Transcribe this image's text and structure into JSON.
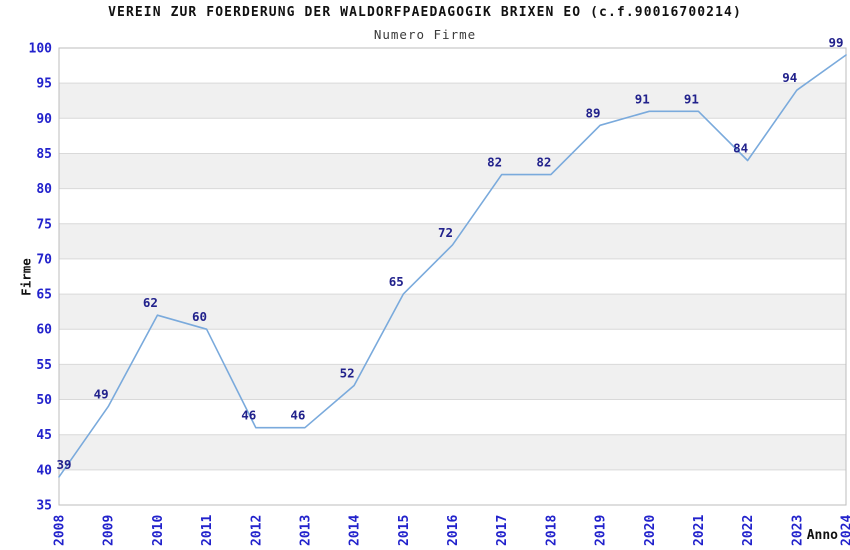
{
  "chart_data": {
    "type": "line",
    "title": "VEREIN ZUR FOERDERUNG DER WALDORFPAEDAGOGIK BRIXEN EO (c.f.90016700214)",
    "subtitle": "Numero Firme",
    "xlabel": "Anno",
    "ylabel": "Firme",
    "categories": [
      "2008",
      "2009",
      "2010",
      "2011",
      "2012",
      "2013",
      "2014",
      "2015",
      "2016",
      "2017",
      "2018",
      "2019",
      "2020",
      "2021",
      "2022",
      "2023",
      "2024"
    ],
    "series": [
      {
        "name": "Numero Firme",
        "values": [
          39,
          49,
          62,
          60,
          46,
          46,
          52,
          65,
          72,
          82,
          82,
          89,
          91,
          91,
          84,
          94,
          99
        ]
      }
    ],
    "ylim": [
      35,
      100
    ],
    "ytick_step": 5,
    "yticks": [
      35,
      40,
      45,
      50,
      55,
      60,
      65,
      70,
      75,
      80,
      85,
      90,
      95,
      100
    ],
    "grid": "horizontal",
    "plot_bands": "alternating",
    "legend": "none",
    "data_labels_visible": true,
    "colors": {
      "line": "#7aaadc",
      "band": "#f0f0f0",
      "gridline": "#d9d9d9",
      "border": "#bdbdbd",
      "tick_label": "#2222cc",
      "data_label": "#22228c",
      "title": "#111111",
      "subtitle": "#3a3a3a",
      "axis_title": "#111111"
    }
  }
}
